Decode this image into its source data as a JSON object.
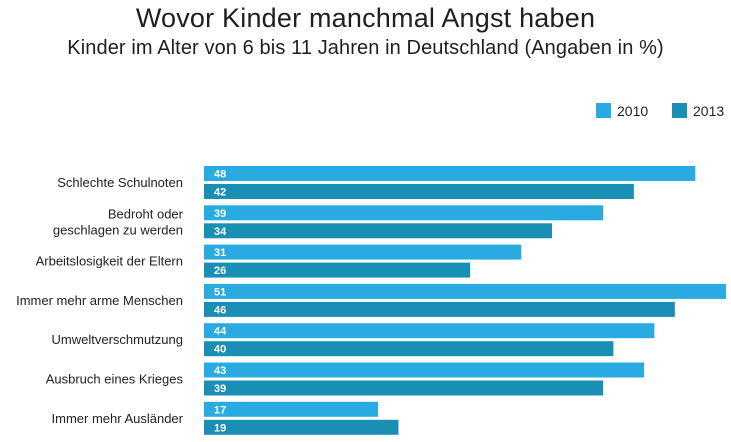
{
  "header": {
    "title": "Wovor Kinder manchmal Angst haben",
    "subtitle": "Kinder im Alter von 6 bis 11 Jahren in Deutschland (Angaben in %)"
  },
  "colors": {
    "series_2010": "#29abe2",
    "series_2013": "#1a8fb5"
  },
  "chart_data": {
    "type": "bar",
    "orientation": "horizontal",
    "title": "Wovor Kinder manchmal Angst haben",
    "subtitle": "Kinder im Alter von 6 bis 11 Jahren in Deutschland (Angaben in %)",
    "categories": [
      [
        "Schlechte Schulnoten"
      ],
      [
        "Bedroht oder",
        "geschlagen zu werden"
      ],
      [
        "Arbeitslosigkeit der Eltern"
      ],
      [
        "Immer mehr arme Menschen"
      ],
      [
        "Umweltverschmutzung"
      ],
      [
        "Ausbruch eines Krieges"
      ],
      [
        "Immer mehr Ausländer"
      ]
    ],
    "series": [
      {
        "name": "2010",
        "values": [
          48,
          39,
          31,
          51,
          44,
          43,
          17
        ]
      },
      {
        "name": "2013",
        "values": [
          42,
          34,
          26,
          46,
          40,
          39,
          19
        ]
      }
    ],
    "xlim": [
      0,
      51
    ],
    "grid": false,
    "legend_position": "top-right",
    "data_labels": true
  }
}
